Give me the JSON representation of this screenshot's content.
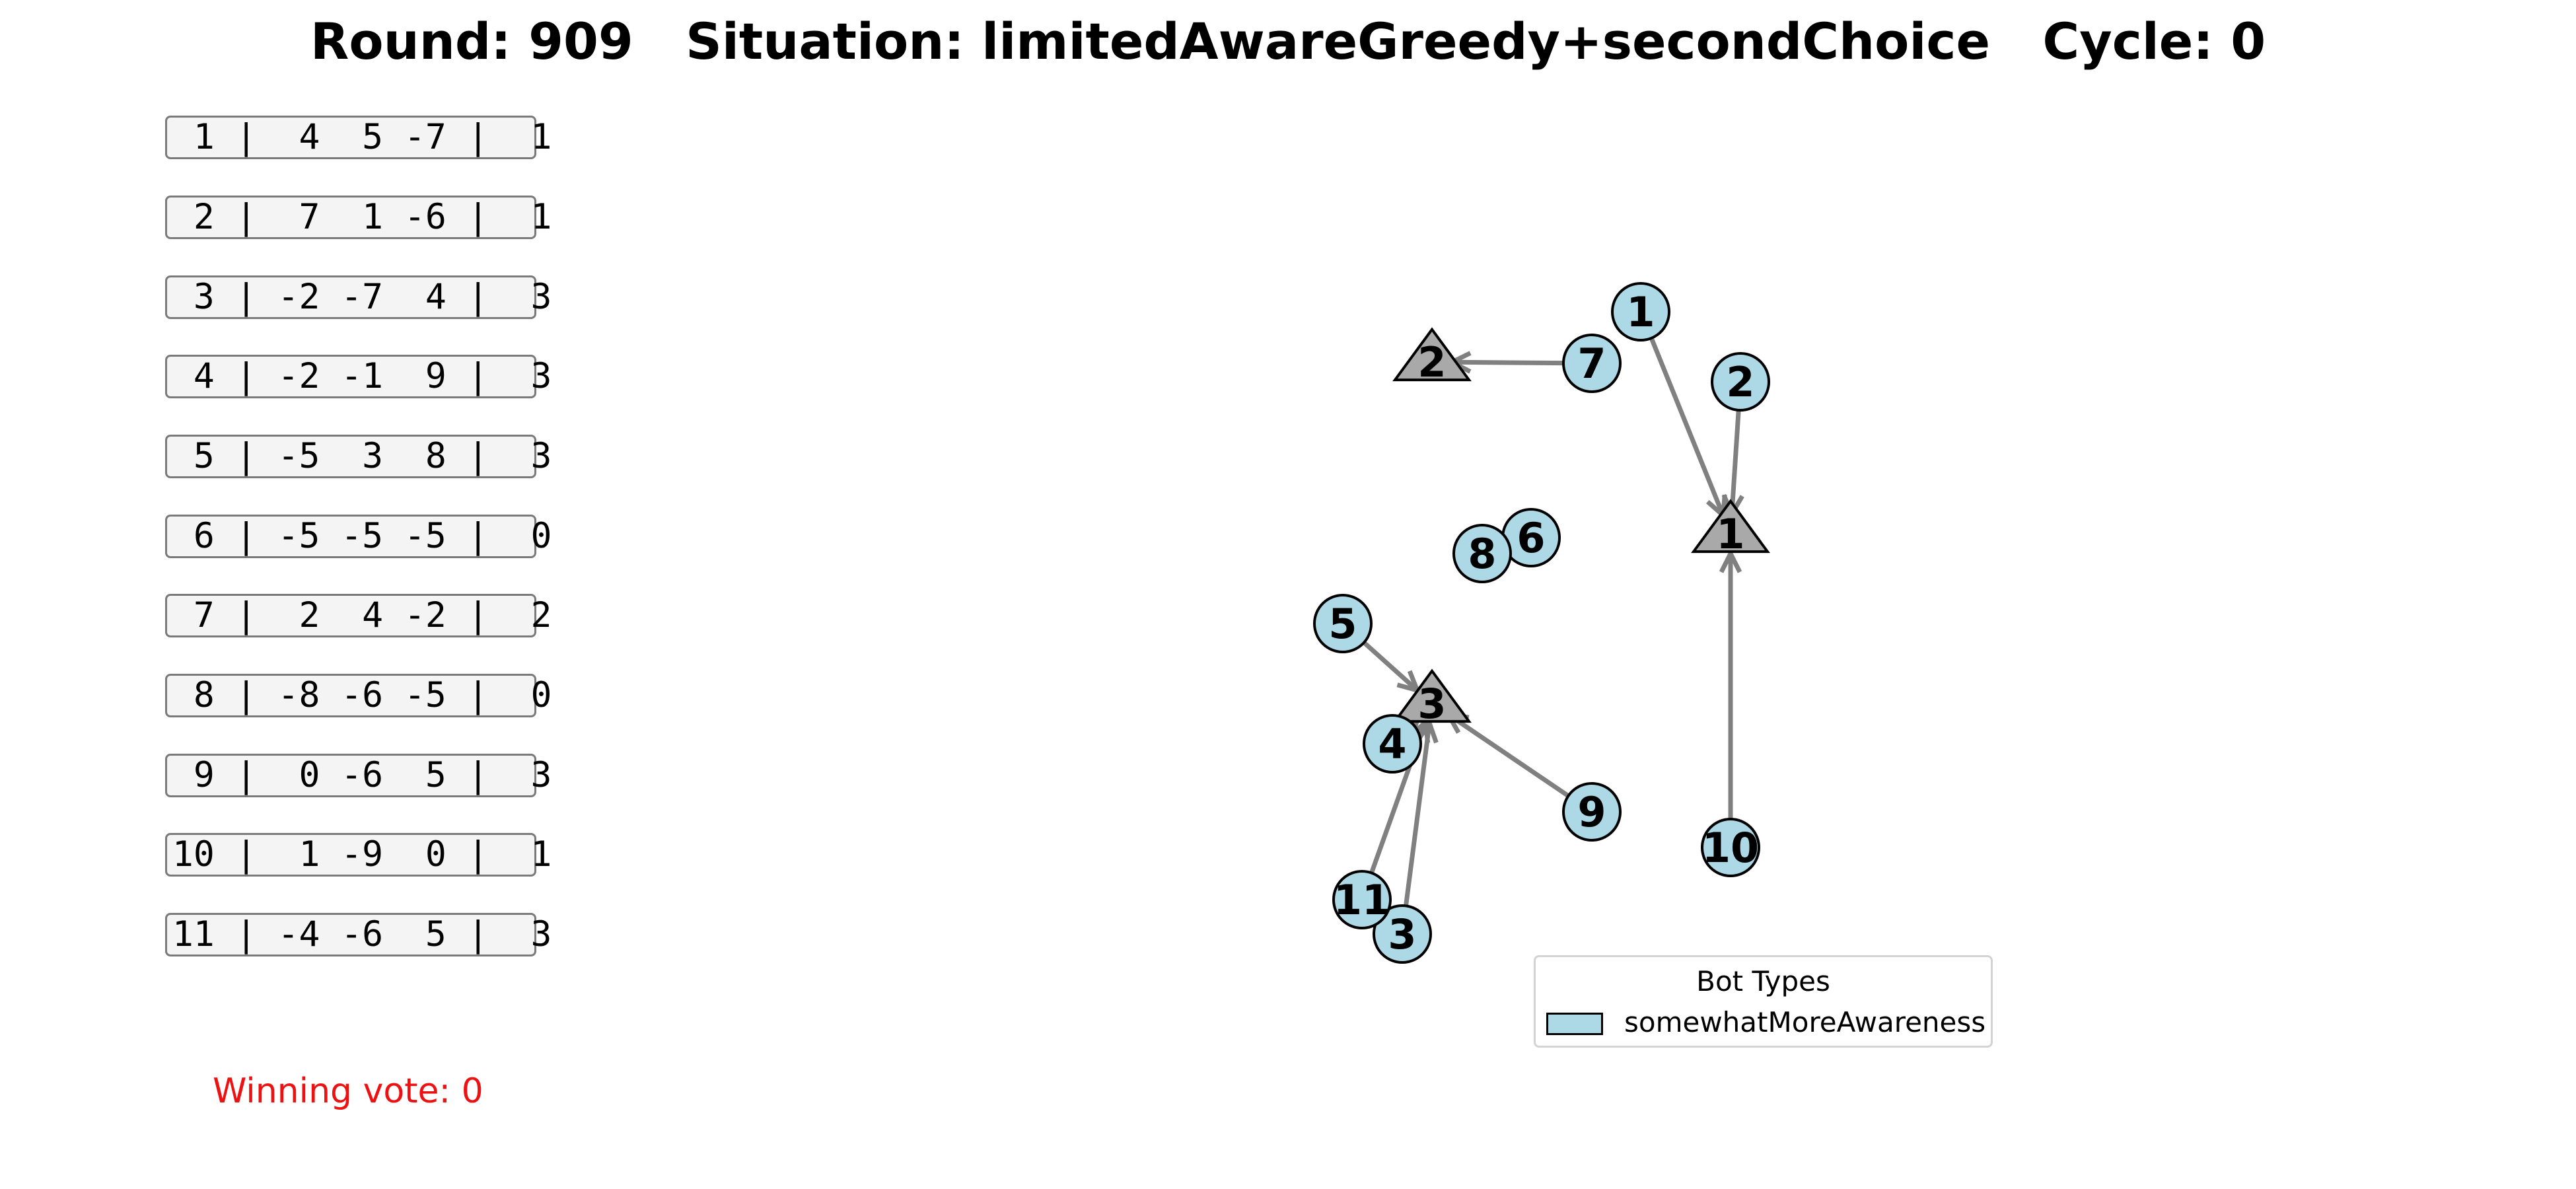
{
  "title": "Round: 909   Situation: limitedAwareGreedy+secondChoice   Cycle: 0",
  "panel": [
    " 1 |  4  5 -7 |  1",
    " 2 |  7  1 -6 |  1",
    " 3 | -2 -7  4 |  3",
    " 4 | -2 -1  9 |  3",
    " 5 | -5  3  8 |  3",
    " 6 | -5 -5 -5 |  0",
    " 7 |  2  4 -2 |  2",
    " 8 | -8 -6 -5 |  0",
    " 9 |  0 -6  5 |  3",
    "10 |  1 -9  0 |  1",
    "11 | -4 -6  5 |  3"
  ],
  "winning_vote": "Winning vote: 0",
  "legend": {
    "title": "Bot Types",
    "label": "somewhatMoreAwareness"
  },
  "colors": {
    "bot_fill": "#add8e6",
    "candidate_fill": "#a9a9a9",
    "edge": "#808080",
    "winning_text": "#ee1111"
  },
  "graph": {
    "candidates": [
      "1",
      "2",
      "3"
    ],
    "bots": [
      "1",
      "2",
      "3",
      "4",
      "5",
      "6",
      "7",
      "8",
      "9",
      "10",
      "11"
    ],
    "edges": [
      {
        "from": "1",
        "to": "1"
      },
      {
        "from": "2",
        "to": "1"
      },
      {
        "from": "10",
        "to": "1"
      },
      {
        "from": "7",
        "to": "2"
      },
      {
        "from": "5",
        "to": "3"
      },
      {
        "from": "4",
        "to": "3"
      },
      {
        "from": "9",
        "to": "3"
      },
      {
        "from": "11",
        "to": "3"
      },
      {
        "from": "3",
        "to": "3"
      }
    ]
  }
}
